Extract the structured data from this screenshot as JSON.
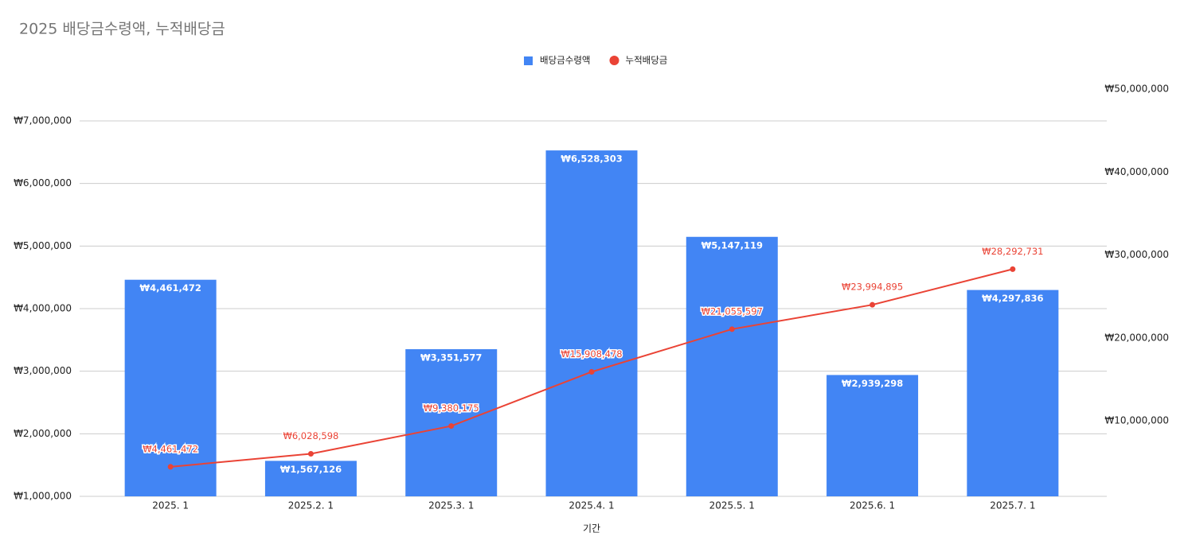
{
  "chart_data": {
    "type": "bar_line",
    "title": "2025 배당금수령액, 누적배당금",
    "x_label": "기간",
    "categories": [
      "2025. 1",
      "2025.2. 1",
      "2025.3. 1",
      "2025.4. 1",
      "2025.5. 1",
      "2025.6. 1",
      "2025.7. 1"
    ],
    "series": [
      {
        "name": "배당금수령액",
        "type": "bar",
        "color": "#4285f4",
        "values": [
          4461472,
          1567126,
          3351577,
          6528303,
          5147119,
          2939298,
          4297836
        ],
        "value_labels": [
          "₩4,461,472",
          "₩1,567,126",
          "₩3,351,577",
          "₩6,528,303",
          "₩5,147,119",
          "₩2,939,298",
          "₩4,297,836"
        ]
      },
      {
        "name": "누적배당금",
        "type": "line",
        "axis": "y2",
        "color": "#ea4335",
        "values": [
          4461472,
          6028598,
          9380175,
          15908478,
          21055597,
          23994895,
          28292731
        ],
        "value_labels": [
          "₩4,461,472",
          "₩6,028,598",
          "₩9,380,175",
          "₩15,908,478",
          "₩21,055,597",
          "₩23,994,895",
          "₩28,292,731"
        ]
      }
    ],
    "ylim": [
      1000000,
      7000000
    ],
    "yticks": [
      {
        "value": 1000000,
        "label": "₩1,000,000"
      },
      {
        "value": 2000000,
        "label": "₩2,000,000"
      },
      {
        "value": 3000000,
        "label": "₩3,000,000"
      },
      {
        "value": 4000000,
        "label": "₩4,000,000"
      },
      {
        "value": 5000000,
        "label": "₩5,000,000"
      },
      {
        "value": 6000000,
        "label": "₩6,000,000"
      },
      {
        "value": 7000000,
        "label": "₩7,000,000"
      }
    ],
    "y2lim": [
      900000,
      50000000
    ],
    "y2ticks": [
      {
        "value": 10000000,
        "label": "₩10,000,000"
      },
      {
        "value": 20000000,
        "label": "₩20,000,000"
      },
      {
        "value": 30000000,
        "label": "₩30,000,000"
      },
      {
        "value": 40000000,
        "label": "₩40,000,000"
      },
      {
        "value": 50000000,
        "label": "₩50,000,000"
      }
    ],
    "grid": true,
    "legend": "top"
  }
}
